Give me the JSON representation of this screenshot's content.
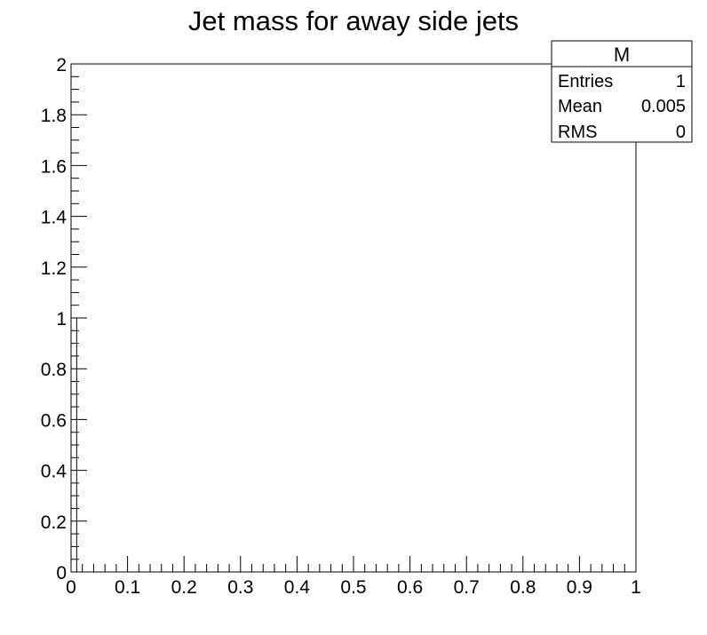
{
  "chart_data": {
    "type": "bar",
    "title": "Jet mass for away side jets",
    "xlabel": "",
    "ylabel": "",
    "xlim": [
      0,
      1
    ],
    "ylim": [
      0,
      2
    ],
    "x_ticks": [
      "0",
      "0.1",
      "0.2",
      "0.3",
      "0.4",
      "0.5",
      "0.6",
      "0.7",
      "0.8",
      "0.9",
      "1"
    ],
    "y_ticks": [
      "0",
      "0.2",
      "0.4",
      "0.6",
      "0.8",
      "1",
      "1.2",
      "1.4",
      "1.6",
      "1.8",
      "2"
    ],
    "bins": {
      "count": 100,
      "min": 0,
      "max": 1
    },
    "series": [
      {
        "x": [
          0.005
        ],
        "values": [
          1
        ]
      }
    ],
    "colors": {
      "line": "#000000",
      "fill": "none"
    },
    "grid": false
  },
  "stats_box": {
    "name": "M",
    "rows": [
      {
        "label": "Entries",
        "value": "1"
      },
      {
        "label": "Mean",
        "value": "0.005"
      },
      {
        "label": "RMS",
        "value": "0"
      }
    ],
    "placement": "top-right"
  }
}
